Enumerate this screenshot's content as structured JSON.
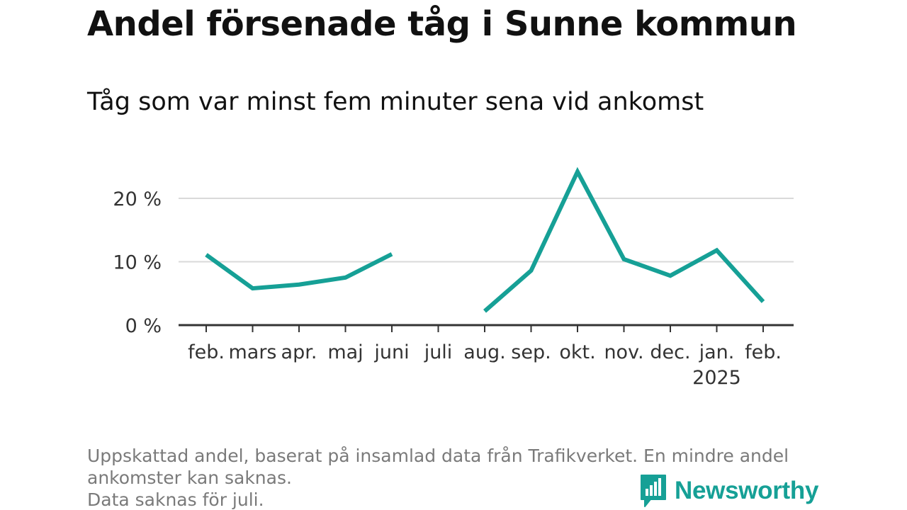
{
  "header": {
    "title": "Andel försenade tåg i Sunne kommun",
    "subtitle": "Tåg som var minst fem minuter sena vid ankomst"
  },
  "chart_data": {
    "type": "line",
    "title": "Andel försenade tåg i Sunne kommun",
    "subtitle": "Tåg som var minst fem minuter sena vid ankomst",
    "xlabel": "",
    "ylabel": "",
    "categories": [
      "feb.",
      "mars",
      "apr.",
      "maj",
      "juni",
      "juli",
      "aug.",
      "sep.",
      "okt.",
      "nov.",
      "dec.",
      "jan.",
      "feb."
    ],
    "year_labels": [
      {
        "category_index": 11,
        "text": "2025"
      }
    ],
    "series": [
      {
        "name": "Andel försenade tåg",
        "color": "#16a096",
        "values": [
          11.1,
          5.8,
          6.4,
          7.5,
          11.2,
          null,
          2.2,
          8.6,
          24.2,
          10.4,
          7.8,
          11.8,
          3.7
        ]
      }
    ],
    "ylim": [
      0,
      25
    ],
    "yticks": [
      0,
      10,
      20
    ],
    "ytick_labels": [
      "0 %",
      "10 %",
      "20 %"
    ],
    "grid": true
  },
  "footer": {
    "note_line1": "Uppskattad andel, baserat på insamlad data från Trafikverket. En mindre andel",
    "note_line2": "ankomster kan saknas.",
    "note_line3": "Data saknas för juli.",
    "brand": "Newsworthy",
    "brand_icon": "bar-chart-speech-bubble-icon"
  }
}
